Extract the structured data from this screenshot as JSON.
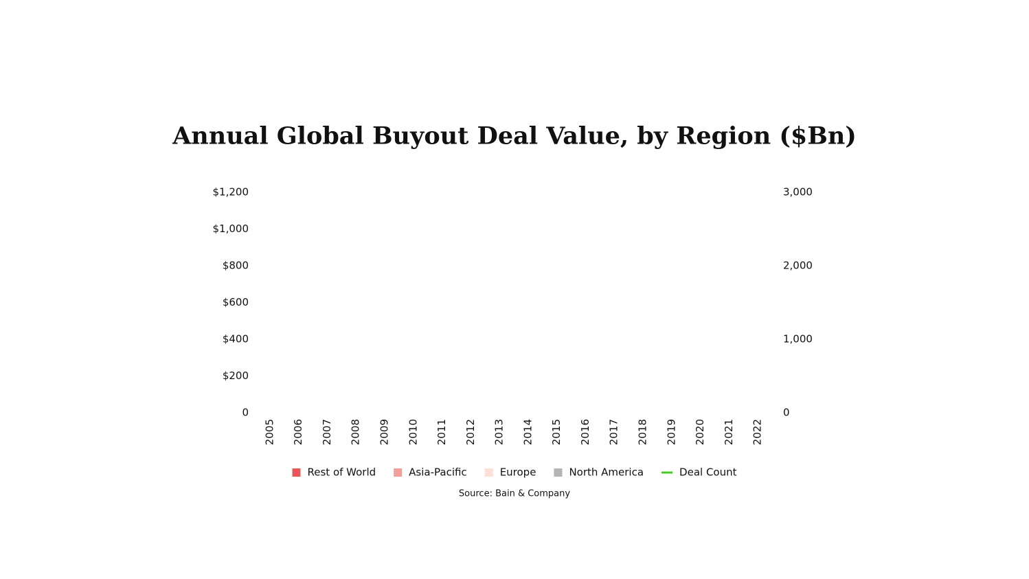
{
  "chart_data": {
    "type": "bar",
    "stacked": true,
    "title": "Annual Global Buyout Deal Value, by Region ($Bn)",
    "source": "Source: Bain & Company",
    "categories": [
      "2005",
      "2006",
      "2007",
      "2008",
      "2009",
      "2010",
      "2011",
      "2012",
      "2013",
      "2014",
      "2015",
      "2016",
      "2017",
      "2018",
      "2019",
      "2020",
      "2021",
      "2022"
    ],
    "series": [
      {
        "name": "Rest of World",
        "color": "#e8585a",
        "values": [
          null,
          null,
          null,
          null,
          null,
          null,
          null,
          null,
          null,
          null,
          null,
          null,
          null,
          null,
          null,
          null,
          null,
          null
        ]
      },
      {
        "name": "Asia-Pacific",
        "color": "#f2a09e",
        "values": [
          null,
          null,
          null,
          null,
          null,
          null,
          null,
          null,
          null,
          null,
          null,
          null,
          null,
          null,
          null,
          null,
          null,
          null
        ]
      },
      {
        "name": "Europe",
        "color": "#fde0d6",
        "values": [
          null,
          null,
          null,
          null,
          null,
          null,
          null,
          null,
          null,
          null,
          null,
          null,
          null,
          null,
          null,
          null,
          null,
          null
        ]
      },
      {
        "name": "North America",
        "color": "#b5b5b5",
        "values": [
          null,
          null,
          null,
          null,
          null,
          null,
          null,
          null,
          null,
          null,
          null,
          null,
          null,
          null,
          null,
          null,
          null,
          null
        ]
      },
      {
        "name": "Deal Count",
        "color": "#44cc22",
        "type": "line",
        "axis": "y2",
        "values": [
          null,
          null,
          null,
          null,
          null,
          null,
          null,
          null,
          null,
          null,
          null,
          null,
          null,
          null,
          null,
          null,
          null,
          null
        ]
      }
    ],
    "ylim": [
      0,
      1200
    ],
    "yticks": [
      0,
      {
        "value": 200,
        "label": "$200"
      },
      {
        "value": 400,
        "label": "$400"
      },
      {
        "value": 600,
        "label": "$600"
      },
      {
        "value": 800,
        "label": "$800"
      },
      {
        "value": 1000,
        "label": "$1,000"
      },
      {
        "value": 1200,
        "label": "$1,200"
      }
    ],
    "y2lim": [
      0,
      3000
    ],
    "y2ticks": [
      0,
      {
        "value": 1000,
        "label": "1,000"
      },
      {
        "value": 2000,
        "label": "2,000"
      },
      {
        "value": 3000,
        "label": "3,000"
      }
    ],
    "legend": "bottom"
  }
}
